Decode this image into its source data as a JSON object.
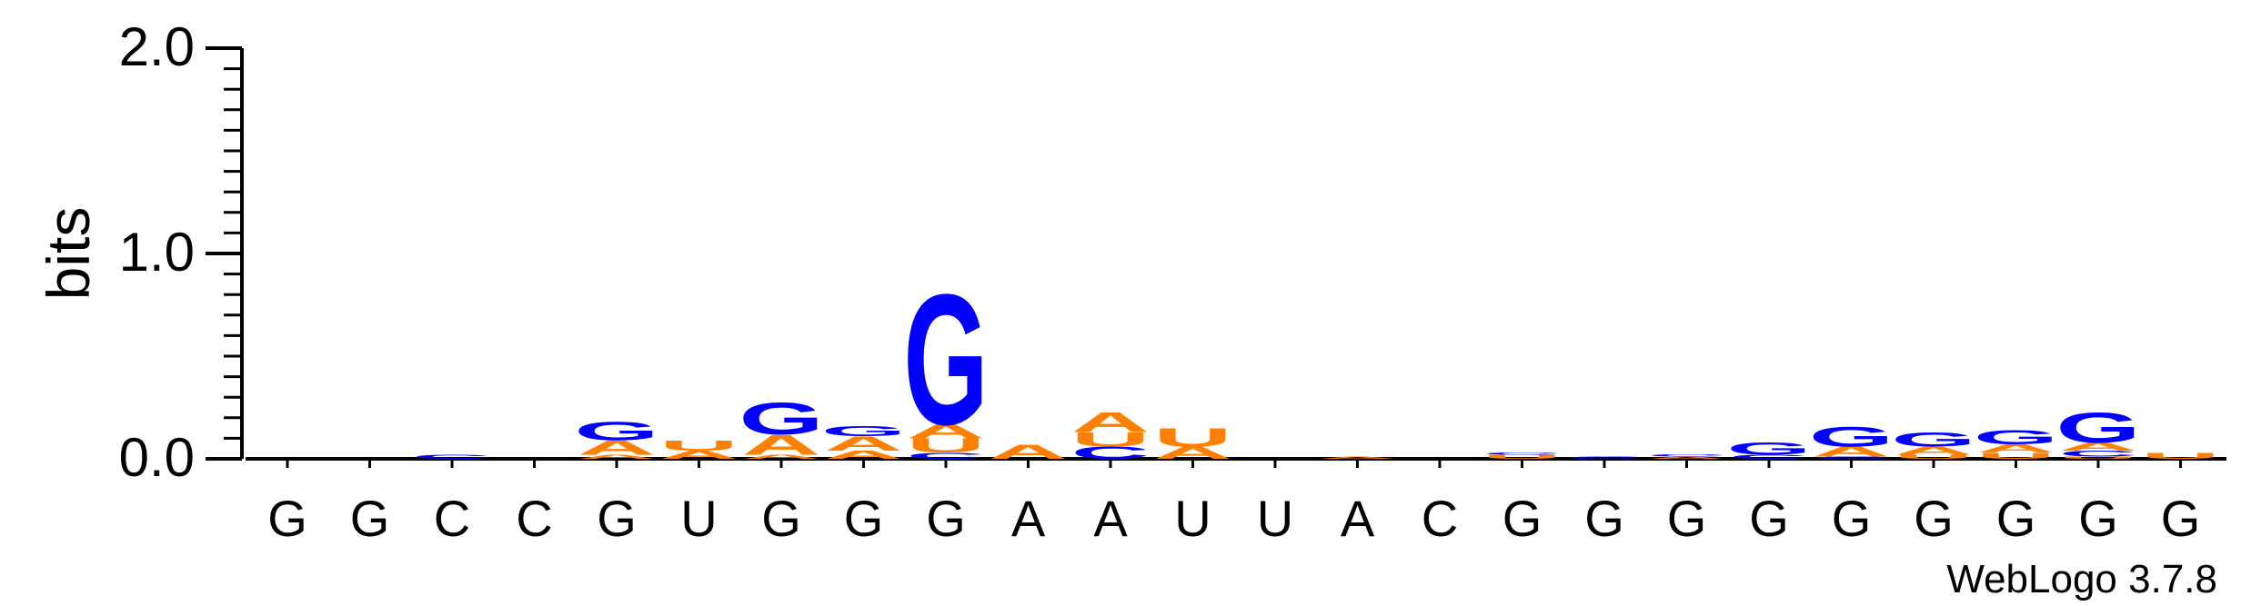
{
  "chart_data": {
    "type": "sequence-logo",
    "ylabel": "bits",
    "ylim": [
      0,
      2.0
    ],
    "yticks": [
      "0.0",
      "1.0",
      "2.0"
    ],
    "consensus": [
      "G",
      "G",
      "C",
      "C",
      "G",
      "U",
      "G",
      "G",
      "G",
      "A",
      "A",
      "U",
      "U",
      "A",
      "C",
      "G",
      "G",
      "G",
      "G",
      "G",
      "G",
      "G",
      "G",
      "G"
    ],
    "colors": {
      "G": "#0000ff",
      "A": "#ff8000",
      "U": "#ff8000",
      "C": "#0000ff"
    },
    "positions": [
      [],
      [],
      [
        [
          "C",
          0.02
        ]
      ],
      [],
      [
        [
          "A",
          0.02
        ],
        [
          "A",
          0.07
        ],
        [
          "G",
          0.09
        ]
      ],
      [
        [
          "A",
          0.04
        ],
        [
          "U",
          0.05
        ]
      ],
      [
        [
          "A",
          0.02
        ],
        [
          "A",
          0.1
        ],
        [
          "G",
          0.16
        ]
      ],
      [
        [
          "A",
          0.04
        ],
        [
          "A",
          0.07
        ],
        [
          "G",
          0.05
        ]
      ],
      [
        [
          "C",
          0.03
        ],
        [
          "U",
          0.07
        ],
        [
          "A",
          0.07
        ],
        [
          "G",
          0.65
        ]
      ],
      [
        [
          "A",
          0.07
        ]
      ],
      [
        [
          "C",
          0.06
        ],
        [
          "U",
          0.07
        ],
        [
          "A",
          0.1
        ]
      ],
      [
        [
          "A",
          0.06
        ],
        [
          "U",
          0.09
        ]
      ],
      [],
      [
        [
          "A",
          0.01
        ]
      ],
      [],
      [
        [
          "U",
          0.02
        ],
        [
          "C",
          0.01
        ]
      ],
      [
        [
          "C",
          0.01
        ]
      ],
      [
        [
          "A",
          0.01
        ],
        [
          "C",
          0.01
        ]
      ],
      [
        [
          "C",
          0.02
        ],
        [
          "G",
          0.06
        ]
      ],
      [
        [
          "C",
          0.01
        ],
        [
          "A",
          0.05
        ],
        [
          "G",
          0.1
        ]
      ],
      [
        [
          "U",
          0.02
        ],
        [
          "A",
          0.04
        ],
        [
          "G",
          0.07
        ]
      ],
      [
        [
          "U",
          0.03
        ],
        [
          "A",
          0.04
        ],
        [
          "G",
          0.07
        ]
      ],
      [
        [
          "U",
          0.01
        ],
        [
          "C",
          0.03
        ],
        [
          "A",
          0.04
        ],
        [
          "G",
          0.15
        ]
      ],
      [
        [
          "U",
          0.03
        ]
      ]
    ]
  },
  "footer": {
    "version_label": "WebLogo 3.7.8"
  }
}
